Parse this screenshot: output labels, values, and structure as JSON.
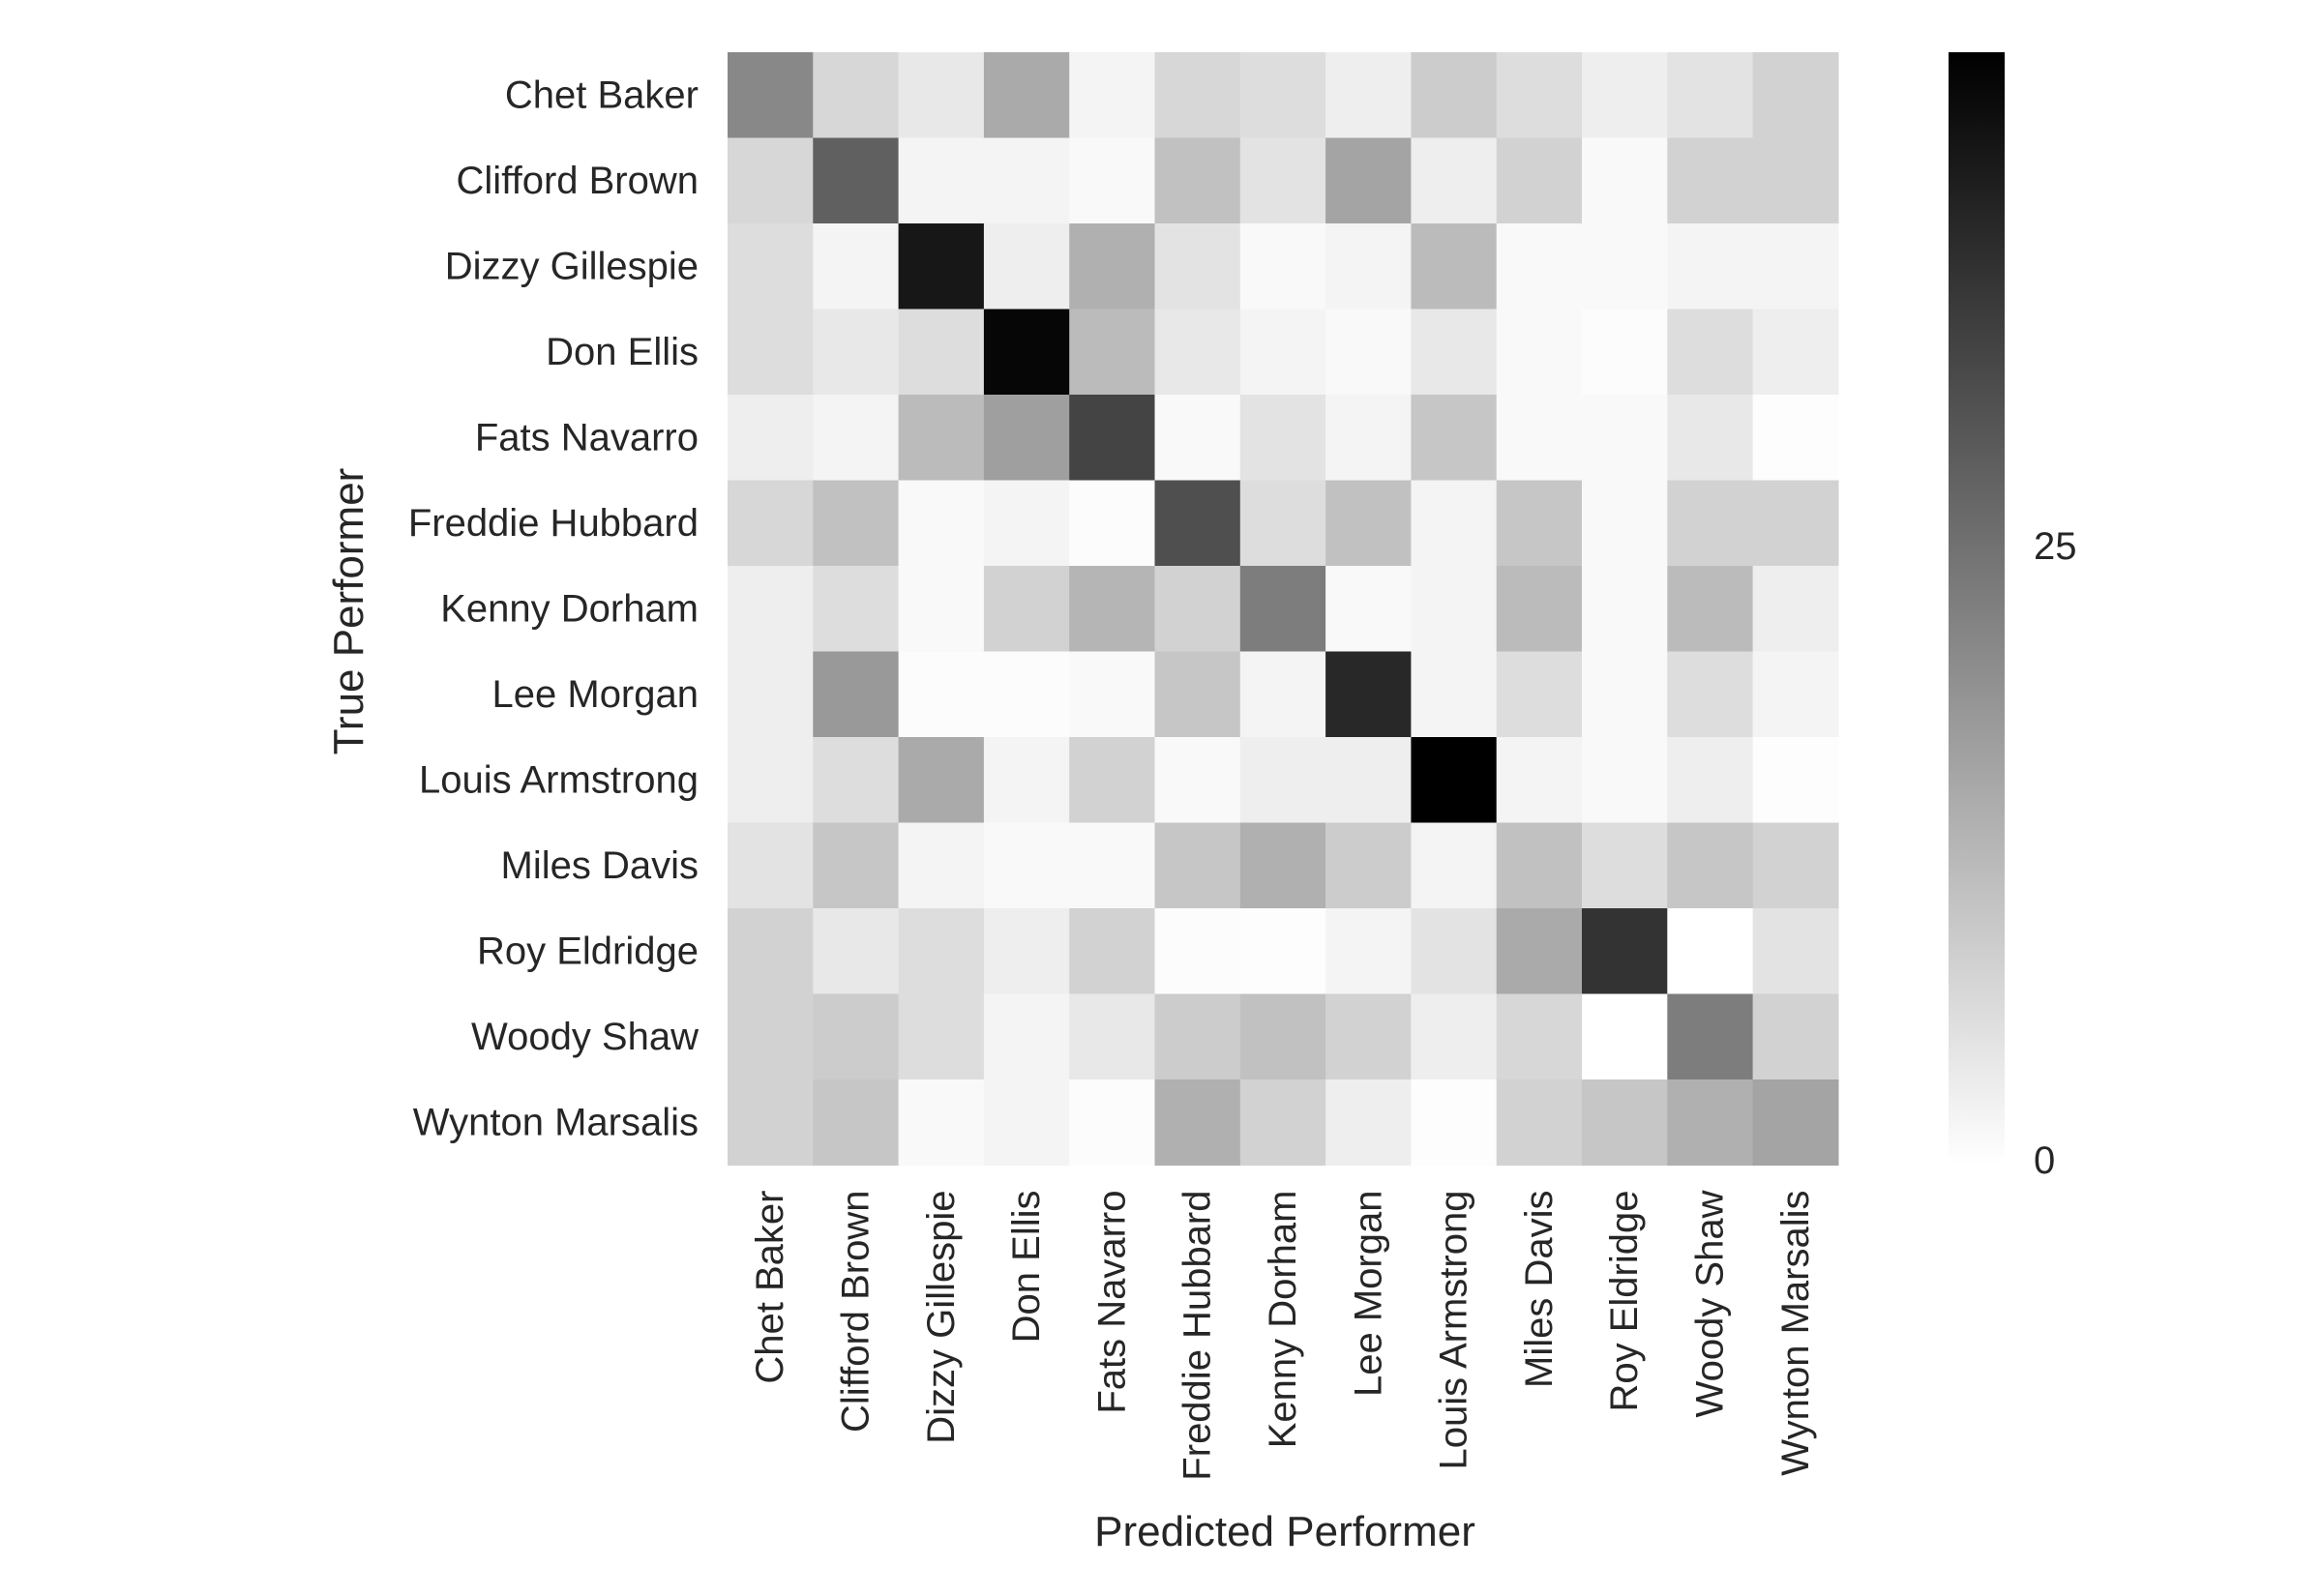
{
  "chart_data": {
    "type": "heatmap",
    "xlabel": "Predicted Performer",
    "ylabel": "True Performer",
    "x_categories": [
      "Chet Baker",
      "Clifford Brown",
      "Dizzy Gillespie",
      "Don Ellis",
      "Fats Navarro",
      "Freddie Hubbard",
      "Kenny Dorham",
      "Lee Morgan",
      "Louis Armstrong",
      "Miles Davis",
      "Roy Eldridge",
      "Woody Shaw",
      "Wynton Marsalis"
    ],
    "y_categories": [
      "Chet Baker",
      "Clifford Brown",
      "Dizzy Gillespie",
      "Don Ellis",
      "Fats Navarro",
      "Freddie Hubbard",
      "Kenny Dorham",
      "Lee Morgan",
      "Louis Armstrong",
      "Miles Davis",
      "Roy Eldridge",
      "Woody Shaw",
      "Wynton Marsalis"
    ],
    "values": [
      [
        21,
        7,
        4,
        15,
        2,
        7,
        6,
        3,
        9,
        6,
        3,
        5,
        8
      ],
      [
        7,
        28,
        2,
        2,
        1,
        11,
        5,
        16,
        3,
        8,
        1,
        8,
        8
      ],
      [
        6,
        2,
        41,
        3,
        14,
        5,
        1,
        2,
        12,
        1,
        1,
        2,
        2
      ],
      [
        6,
        4,
        6,
        44,
        12,
        4,
        2,
        1,
        4,
        1,
        0.5,
        6,
        3
      ],
      [
        3,
        2,
        12,
        17,
        33,
        1,
        5,
        2,
        10,
        1,
        1,
        4,
        0.3
      ],
      [
        7,
        11,
        1,
        2,
        0.5,
        31,
        6,
        11,
        2,
        10,
        1,
        8,
        8
      ],
      [
        3,
        6,
        1,
        8,
        13,
        8,
        23,
        1,
        2,
        12,
        1,
        12,
        3
      ],
      [
        3,
        18,
        0.5,
        0.5,
        1,
        10,
        2,
        38,
        2,
        6,
        1,
        6,
        2
      ],
      [
        3,
        6,
        15,
        2,
        8,
        1,
        3,
        3,
        45,
        2,
        1,
        3,
        0.3
      ],
      [
        5,
        10,
        2,
        1,
        1,
        10,
        14,
        9,
        2,
        11,
        6,
        10,
        8
      ],
      [
        8,
        4,
        6,
        3,
        8,
        0.5,
        0.3,
        2,
        5,
        15,
        36,
        0,
        5
      ],
      [
        8,
        9,
        6,
        2,
        4,
        9,
        11,
        8,
        3,
        7,
        0,
        23,
        8
      ],
      [
        8,
        10,
        1,
        2,
        0.5,
        14,
        8,
        3,
        0.3,
        8,
        10,
        14,
        16
      ]
    ],
    "colorbar": {
      "min": 0,
      "max": 45,
      "ticks": [
        0,
        25
      ],
      "low_color": "#ffffff",
      "high_color": "#000000"
    },
    "grid": false
  }
}
